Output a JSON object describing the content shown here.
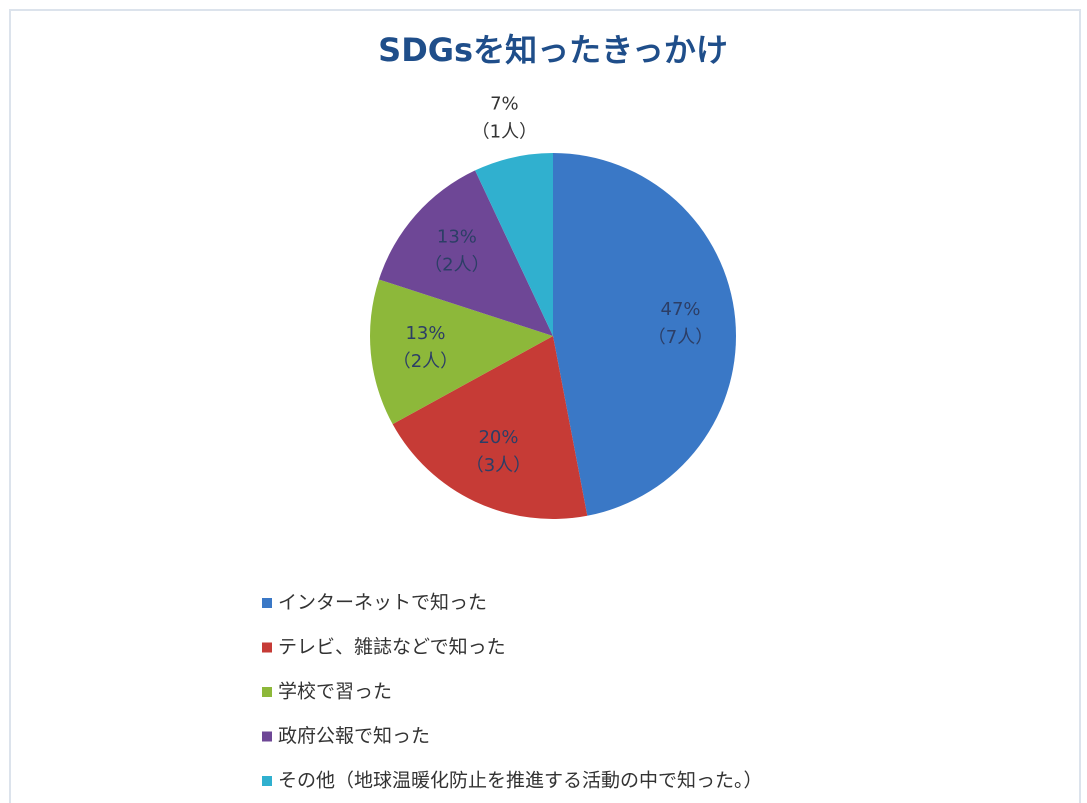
{
  "chart_data": {
    "type": "pie",
    "title": "SDGsを知ったきっかけ",
    "categories": [
      "インターネットで知った",
      "テレビ、雑誌などで知った",
      "学校で習った",
      "政府公報で知った",
      "その他（地球温暖化防止を推進する活動の中で知った。）"
    ],
    "values": [
      47,
      20,
      13,
      13,
      7
    ],
    "value_labels": [
      "47%",
      "20%",
      "13%",
      "13%",
      "7%"
    ],
    "counts": [
      7,
      3,
      2,
      2,
      1
    ],
    "count_labels": [
      "（7人）",
      "（3人）",
      "（2人）",
      "（2人）",
      "（1人）"
    ],
    "colors": [
      "#3a78c6",
      "#c63b36",
      "#8db83a",
      "#6e4796",
      "#30b0cf"
    ],
    "legend": "bottom"
  }
}
